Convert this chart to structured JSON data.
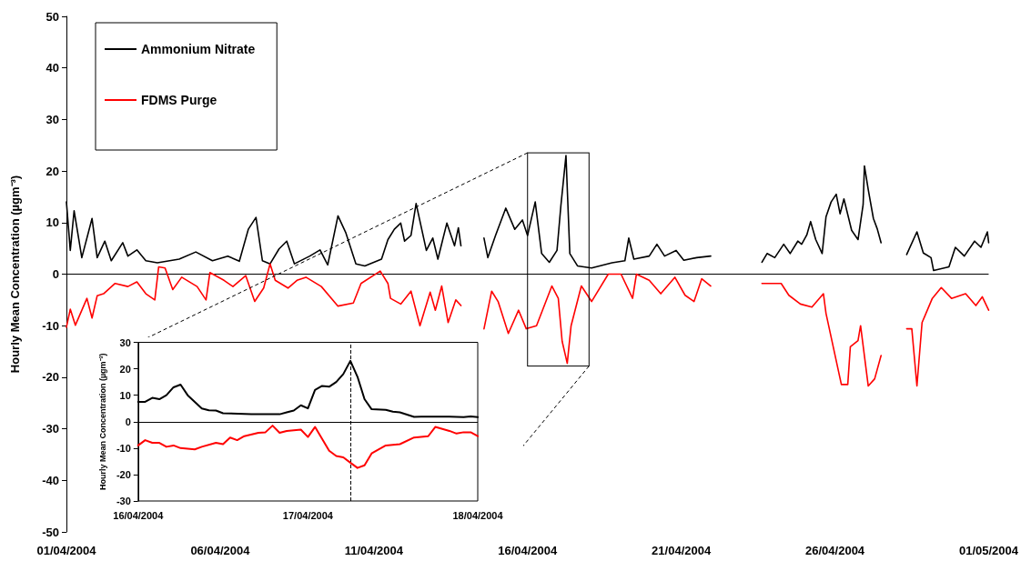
{
  "chart_data": [
    {
      "type": "line",
      "ylabel": "Hourly Mean Concentration (µgm⁻³)",
      "xlim": [
        "2004-04-01",
        "2004-05-01"
      ],
      "xticks": [
        {
          "value": "2004-04-01",
          "label": "01/04/2004"
        },
        {
          "value": "2004-04-06",
          "label": "06/04/2004"
        },
        {
          "value": "2004-04-11",
          "label": "11/04/2004"
        },
        {
          "value": "2004-04-16",
          "label": "16/04/2004"
        },
        {
          "value": "2004-04-21",
          "label": "21/04/2004"
        },
        {
          "value": "2004-04-26",
          "label": "26/04/2004"
        },
        {
          "value": "2004-05-01",
          "label": "01/05/2004"
        }
      ],
      "ylim": [
        -50,
        50
      ],
      "yticks": [
        -50,
        -40,
        -30,
        -20,
        -10,
        0,
        10,
        20,
        30,
        40,
        50
      ],
      "grid": false,
      "marker": "none",
      "legend": "top left",
      "ref_lines": [
        {
          "axis": "y",
          "value": 0,
          "color": "#000000"
        }
      ],
      "series": [
        {
          "name": "Ammonium Nitrate",
          "color": "#000000",
          "x": [
            "2004-04-01T00:00",
            "2004-04-01T03:00",
            "2004-04-01T06:00",
            "2004-04-01T12:00",
            "2004-04-01T20:00",
            "2004-04-02T00:00",
            "2004-04-02T06:00",
            "2004-04-02T11:00",
            "2004-04-02T20:00",
            "2004-04-03T00:00",
            "2004-04-03T07:00",
            "2004-04-03T14:00",
            "2004-04-03T23:00",
            "2004-04-04T16:00",
            "2004-04-05T05:00",
            "2004-04-05T18:00",
            "2004-04-06T06:00",
            "2004-04-06T15:00",
            "2004-04-06T22:00",
            "2004-04-07T04:00",
            "2004-04-07T09:00",
            "2004-04-07T15:00",
            "2004-04-07T22:00",
            "2004-04-08T04:00",
            "2004-04-08T10:00",
            "2004-04-08T22:00",
            "2004-04-09T06:00",
            "2004-04-09T12:00",
            "2004-04-09T20:00",
            "2004-04-10T02:00",
            "2004-04-10T10:00",
            "2004-04-10T17:00",
            "2004-04-11T06:00",
            "2004-04-11T11:00",
            "2004-04-11T16:00",
            "2004-04-11T21:00",
            "2004-04-12T00:00",
            "2004-04-12T05:00",
            "2004-04-12T09:00",
            "2004-04-12T17:00",
            "2004-04-12T22:00",
            "2004-04-13T02:00",
            "2004-04-13T09:00",
            "2004-04-13T15:00",
            "2004-04-13T18:00",
            "2004-04-13T20:00",
            "2004-04-14T02:00",
            "2004-04-14T14:00",
            "2004-04-14T17:00",
            "2004-04-14T23:00",
            "2004-04-15T07:00",
            "2004-04-15T14:00",
            "2004-04-15T20:00",
            "2004-04-16T00:00",
            "2004-04-16T06:00",
            "2004-04-16T11:00",
            "2004-04-16T17:00",
            "2004-04-16T23:00",
            "2004-04-17T02:00",
            "2004-04-17T06:00",
            "2004-04-17T09:00",
            "2004-04-17T15:00",
            "2004-04-18T02:00",
            "2004-04-18T18:00",
            "2004-04-19T04:00",
            "2004-04-19T07:00",
            "2004-04-19T11:00",
            "2004-04-19T23:00",
            "2004-04-20T05:00",
            "2004-04-20T11:00",
            "2004-04-20T20:00",
            "2004-04-21T02:00",
            "2004-04-21T12:00",
            "2004-04-21T23:00",
            "2004-04-22T12:00",
            "2004-04-23T15:00",
            "2004-04-23T19:00",
            "2004-04-24T01:00",
            "2004-04-24T08:00",
            "2004-04-24T13:00",
            "2004-04-24T19:00",
            "2004-04-24T22:00",
            "2004-04-25T02:00",
            "2004-04-25T05:00",
            "2004-04-25T09:00",
            "2004-04-25T14:00",
            "2004-04-25T17:00",
            "2004-04-25T21:00",
            "2004-04-26T01:00",
            "2004-04-26T04:00",
            "2004-04-26T07:00",
            "2004-04-26T13:00",
            "2004-04-26T18:00",
            "2004-04-26T22:00",
            "2004-04-26T23:00",
            "2004-04-27T02:00",
            "2004-04-27T06:00",
            "2004-04-27T09:00",
            "2004-04-27T12:00",
            "2004-04-27T22:00",
            "2004-04-28T08:00",
            "2004-04-28T16:00",
            "2004-04-28T21:00",
            "2004-04-29T03:00",
            "2004-04-29T05:00",
            "2004-04-29T17:00",
            "2004-04-29T22:00",
            "2004-04-30T05:00",
            "2004-04-30T13:00",
            "2004-04-30T18:00",
            "2004-04-30T23:00",
            "2004-05-01T00:00"
          ],
          "values": [
            14,
            4.6,
            12.3,
            3.2,
            10.8,
            3.2,
            6.4,
            2.6,
            6.1,
            3.5,
            4.7,
            2.6,
            2.2,
            2.9,
            4.3,
            2.6,
            3.5,
            2.5,
            8.7,
            11,
            2.6,
            2,
            4.9,
            6.4,
            2,
            3.5,
            4.7,
            1.8,
            11.3,
            8.1,
            2,
            1.6,
            2.9,
            6.7,
            8.7,
            9.9,
            6.4,
            7.5,
            13.7,
            4.6,
            7,
            2.9,
            9.9,
            5.5,
            9,
            5.5,
            null,
            7,
            3.2,
            7.5,
            12.8,
            8.7,
            10.5,
            7.5,
            14,
            4,
            2.3,
            4.6,
            13.2,
            23,
            4,
            1.6,
            1.2,
            2.2,
            2.6,
            7,
            2.9,
            3.5,
            5.8,
            3.5,
            4.6,
            2.7,
            3.2,
            3.5,
            null,
            2.3,
            4,
            3.2,
            5.8,
            4,
            6.4,
            5.8,
            7.6,
            10.2,
            6.7,
            4,
            11.1,
            14,
            15.5,
            11.7,
            14.6,
            8.5,
            6.7,
            13.5,
            21,
            16.4,
            10.8,
            8.8,
            6.1,
            null,
            3.8,
            8.2,
            4.1,
            3.2,
            0.7,
            1.4,
            5.2,
            3.5,
            6.4,
            5.2,
            8.2,
            6.1
          ]
        },
        {
          "name": "FDMS Purge",
          "color": "#ff0000",
          "x": [
            "2004-04-01T00:00",
            "2004-04-01T03:00",
            "2004-04-01T07:00",
            "2004-04-01T16:00",
            "2004-04-01T20:00",
            "2004-04-02T00:00",
            "2004-04-02T05:00",
            "2004-04-02T14:00",
            "2004-04-03T00:00",
            "2004-04-03T07:00",
            "2004-04-03T14:00",
            "2004-04-03T21:00",
            "2004-04-04T00:00",
            "2004-04-04T05:00",
            "2004-04-04T11:00",
            "2004-04-04T18:00",
            "2004-04-05T06:00",
            "2004-04-05T13:00",
            "2004-04-05T16:00",
            "2004-04-06T03:00",
            "2004-04-06T10:00",
            "2004-04-06T20:00",
            "2004-04-07T03:00",
            "2004-04-07T10:00",
            "2004-04-07T15:00",
            "2004-04-07T19:00",
            "2004-04-08T05:00",
            "2004-04-08T12:00",
            "2004-04-08T19:00",
            "2004-04-09T07:00",
            "2004-04-09T20:00",
            "2004-04-10T08:00",
            "2004-04-10T14:00",
            "2004-04-11T05:00",
            "2004-04-11T11:00",
            "2004-04-11T13:00",
            "2004-04-11T21:00",
            "2004-04-12T05:00",
            "2004-04-12T12:00",
            "2004-04-12T20:00",
            "2004-04-13T00:00",
            "2004-04-13T05:00",
            "2004-04-13T10:00",
            "2004-04-13T16:00",
            "2004-04-13T20:00",
            "2004-04-14T02:00",
            "2004-04-14T14:00",
            "2004-04-14T20:00",
            "2004-04-15T01:00",
            "2004-04-15T09:00",
            "2004-04-15T17:00",
            "2004-04-15T23:00",
            "2004-04-16T07:00",
            "2004-04-16T19:00",
            "2004-04-17T00:00",
            "2004-04-17T03:00",
            "2004-04-17T07:00",
            "2004-04-17T10:00",
            "2004-04-17T18:00",
            "2004-04-18T02:00",
            "2004-04-18T15:00",
            "2004-04-19T01:00",
            "2004-04-19T10:00",
            "2004-04-19T13:00",
            "2004-04-19T23:00",
            "2004-04-20T08:00",
            "2004-04-20T19:00",
            "2004-04-21T03:00",
            "2004-04-21T10:00",
            "2004-04-21T16:00",
            "2004-04-21T23:00",
            "2004-04-22T12:00",
            "2004-04-23T15:00",
            "2004-04-24T06:00",
            "2004-04-24T12:00",
            "2004-04-24T21:00",
            "2004-04-25T06:00",
            "2004-04-25T15:00",
            "2004-04-25T17:00",
            "2004-04-26T05:00",
            "2004-04-26T10:00",
            "2004-04-26T12:00",
            "2004-04-26T18:00",
            "2004-04-26T20:00",
            "2004-04-27T02:00",
            "2004-04-27T07:00",
            "2004-04-27T12:00",
            "2004-04-27T22:00",
            "2004-04-28T08:00",
            "2004-04-28T12:00",
            "2004-04-28T16:00",
            "2004-04-28T20:00",
            "2004-04-29T04:00",
            "2004-04-29T11:00",
            "2004-04-29T19:00",
            "2004-04-30T06:00",
            "2004-04-30T14:00",
            "2004-04-30T19:00",
            "2004-05-01T00:00"
          ],
          "values": [
            -10.3,
            -6.8,
            -9.9,
            -4.7,
            -8.5,
            -4.2,
            -3.8,
            -1.8,
            -2.4,
            -1.5,
            -3.8,
            -5,
            1.4,
            1.2,
            -3,
            -0.6,
            -2.4,
            -5,
            0.3,
            -1.2,
            -2.4,
            -0.3,
            -5.3,
            -2.7,
            2,
            -1.2,
            -2.7,
            -1.2,
            -0.6,
            -2.4,
            -6.2,
            -5.6,
            -1.8,
            0.6,
            -1.8,
            -4.7,
            -5.8,
            -3.3,
            -10,
            -3.5,
            -7,
            -2.3,
            -9.4,
            -5,
            -6.1,
            null,
            -10.6,
            -3.3,
            -5.3,
            -11.5,
            -7,
            -10.6,
            -10,
            -2.3,
            -4.7,
            -13,
            -17.3,
            -10,
            -2.3,
            -5.3,
            0,
            0,
            -4.7,
            0,
            -1.2,
            -3.8,
            -0.6,
            -4.1,
            -5.3,
            -0.9,
            -2.3,
            null,
            -1.8,
            -1.8,
            -4.1,
            -5.8,
            -6.4,
            -3.8,
            -7.6,
            -21.4,
            -21.4,
            -14.1,
            -12.9,
            -10,
            -21.7,
            -20.3,
            -15.8,
            null,
            -10.6,
            -10.6,
            -21.7,
            -9.4,
            -4.7,
            -2.6,
            -4.7,
            -3.8,
            -6.1,
            -4.4,
            -7
          ]
        }
      ]
    },
    {
      "type": "line",
      "ylabel": "Hourly Mean Concentration (µgm⁻³)",
      "xlim": [
        "2004-04-16",
        "2004-04-18"
      ],
      "xticks": [
        {
          "value": "2004-04-16",
          "label": "16/04/2004"
        },
        {
          "value": "2004-04-17",
          "label": "17/04/2004"
        },
        {
          "value": "2004-04-18",
          "label": "18/04/2004"
        }
      ],
      "ylim": [
        -30,
        30
      ],
      "yticks": [
        -30,
        -20,
        -10,
        0,
        10,
        20,
        30
      ],
      "grid": false,
      "marker": "none",
      "legend": false,
      "ref_lines": [
        {
          "axis": "y",
          "value": 0,
          "color": "#000000"
        },
        {
          "axis": "x",
          "value": "2004-04-17T06:00",
          "color": "#000000",
          "line_style": "dashed"
        }
      ],
      "series": [
        {
          "color": "#000000",
          "x": [
            "2004-04-16T00:00",
            "2004-04-16T01:00",
            "2004-04-16T02:00",
            "2004-04-16T03:00",
            "2004-04-16T04:00",
            "2004-04-16T05:00",
            "2004-04-16T06:00",
            "2004-04-16T07:00",
            "2004-04-16T09:00",
            "2004-04-16T10:00",
            "2004-04-16T11:00",
            "2004-04-16T12:00",
            "2004-04-16T16:00",
            "2004-04-16T20:00",
            "2004-04-16T21:00",
            "2004-04-16T22:00",
            "2004-04-16T23:00",
            "2004-04-17T00:00",
            "2004-04-17T01:00",
            "2004-04-17T02:00",
            "2004-04-17T03:00",
            "2004-04-17T04:00",
            "2004-04-17T05:00",
            "2004-04-17T06:00",
            "2004-04-17T07:00",
            "2004-04-17T08:00",
            "2004-04-17T09:00",
            "2004-04-17T11:00",
            "2004-04-17T12:00",
            "2004-04-17T13:00",
            "2004-04-17T15:00",
            "2004-04-17T16:00",
            "2004-04-17T20:00",
            "2004-04-17T22:00",
            "2004-04-17T23:00",
            "2004-04-18T00:00"
          ],
          "values": [
            7.5,
            7.5,
            9,
            8.5,
            10,
            13,
            14,
            10,
            5,
            4.3,
            4.2,
            3.2,
            2.8,
            2.8,
            3.5,
            4.2,
            6.2,
            5,
            12,
            13.5,
            13.2,
            15,
            18,
            23,
            17,
            8.5,
            4.7,
            4.5,
            3.8,
            3.5,
            1.8,
            1.9,
            1.9,
            1.7,
            2,
            1.7
          ]
        },
        {
          "color": "#ff0000",
          "x": [
            "2004-04-16T00:00",
            "2004-04-16T01:00",
            "2004-04-16T02:00",
            "2004-04-16T03:00",
            "2004-04-16T04:00",
            "2004-04-16T05:00",
            "2004-04-16T06:00",
            "2004-04-16T08:00",
            "2004-04-16T09:00",
            "2004-04-16T11:00",
            "2004-04-16T12:00",
            "2004-04-16T13:00",
            "2004-04-16T14:00",
            "2004-04-16T15:00",
            "2004-04-16T17:00",
            "2004-04-16T18:00",
            "2004-04-16T19:00",
            "2004-04-16T20:00",
            "2004-04-16T21:00",
            "2004-04-16T23:00",
            "2004-04-17T00:00",
            "2004-04-17T01:00",
            "2004-04-17T03:00",
            "2004-04-17T04:00",
            "2004-04-17T05:00",
            "2004-04-17T06:00",
            "2004-04-17T07:00",
            "2004-04-17T08:00",
            "2004-04-17T09:00",
            "2004-04-17T11:00",
            "2004-04-17T13:00",
            "2004-04-17T15:00",
            "2004-04-17T17:00",
            "2004-04-17T18:00",
            "2004-04-17T20:00",
            "2004-04-17T21:00",
            "2004-04-17T22:00",
            "2004-04-17T23:00",
            "2004-04-18T00:00"
          ],
          "values": [
            -9,
            -7,
            -8,
            -8,
            -9.5,
            -9,
            -10,
            -10.5,
            -9.5,
            -8,
            -8.5,
            -6,
            -7,
            -5.5,
            -4.2,
            -4,
            -1.5,
            -4.2,
            -3.5,
            -3,
            -5.8,
            -2,
            -11,
            -13,
            -13.5,
            -15.5,
            -17.5,
            -16.5,
            -12,
            -9,
            -8.5,
            -6,
            -5.5,
            -2,
            -3.5,
            -4.5,
            -4,
            -4,
            -5.5
          ]
        }
      ]
    }
  ]
}
